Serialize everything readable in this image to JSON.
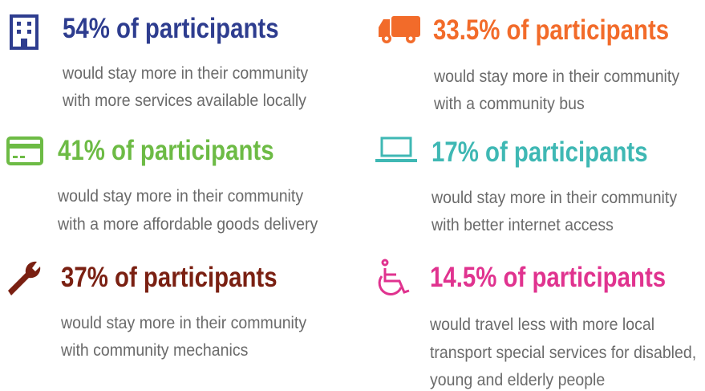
{
  "items": [
    {
      "headline": "54% of participants",
      "lines": [
        "would stay more in their community",
        "with more services available locally"
      ]
    },
    {
      "headline": "33.5% of participants",
      "lines": [
        "would stay more in their community",
        "with a community bus"
      ]
    },
    {
      "headline": "41% of participants",
      "lines": [
        "would stay more in their community",
        "with a more affordable goods delivery"
      ]
    },
    {
      "headline": "17% of participants",
      "lines": [
        "would stay more in their community",
        "with better internet access"
      ]
    },
    {
      "headline": "37% of participants",
      "lines": [
        "would stay more in their community",
        "with community mechanics"
      ]
    },
    {
      "headline": "14.5% of participants",
      "lines": [
        "would travel less with more local",
        "transport special services for disabled,",
        "young and elderly people"
      ]
    }
  ]
}
